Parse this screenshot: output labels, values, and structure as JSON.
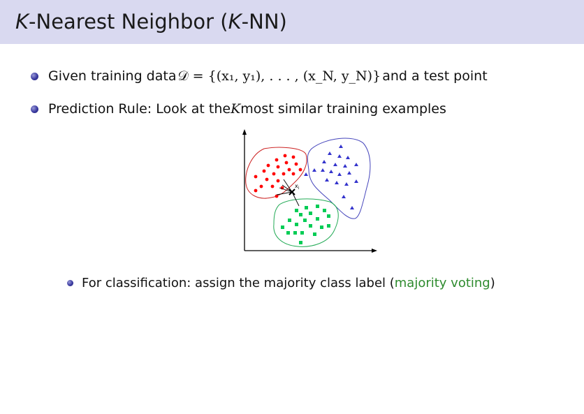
{
  "slide": {
    "title_k": "K",
    "title_mid": "-Nearest Neighbor (",
    "title_k2": "K",
    "title_end": "-NN)"
  },
  "bullets": [
    {
      "prefix": "Given training data ",
      "math": "𝒟 = {(x₁, y₁), . . . , (x_N, y_N)}",
      "suffix": " and a test point"
    },
    {
      "prefix": "Prediction Rule: Look at the ",
      "k": "K",
      "suffix": " most similar training examples"
    }
  ],
  "sub_bullet": {
    "prefix": "For classification: assign the majority class label (",
    "highlight": "majority voting",
    "suffix": ")"
  },
  "figure": {
    "test_point_label": "x",
    "test_point_sub": "i",
    "colors": {
      "red": "#ff0000",
      "blue": "#3333cc",
      "green": "#00cc55"
    }
  }
}
